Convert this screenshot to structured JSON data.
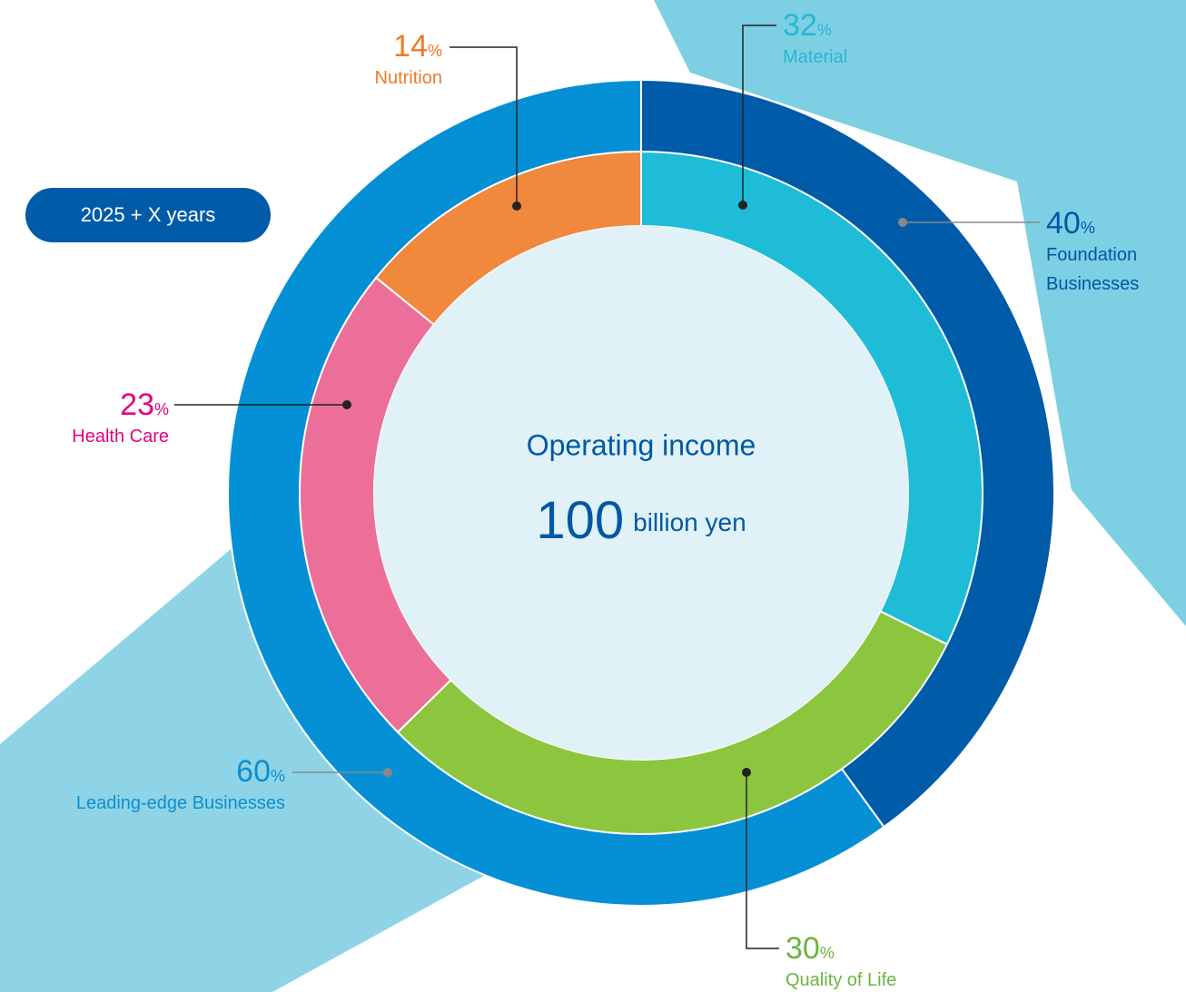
{
  "chart_data": {
    "type": "donut",
    "title": "Operating income",
    "center_value": 100,
    "center_unit": "billion yen",
    "badge": "2025 + X years",
    "unit": "%",
    "rings": [
      {
        "categories": [
          "Foundation Businesses",
          "Leading-edge Businesses"
        ],
        "values": [
          40,
          60
        ],
        "colors": [
          "#005ba8",
          "#0590d6"
        ]
      },
      {
        "categories": [
          "Material",
          "Quality of Life",
          "Health Care",
          "Nutrition"
        ],
        "values": [
          32,
          30,
          23,
          14
        ],
        "colors": [
          "#1fbcd8",
          "#8cc63f",
          "#ec6f99",
          "#f0883e"
        ]
      }
    ]
  }
}
